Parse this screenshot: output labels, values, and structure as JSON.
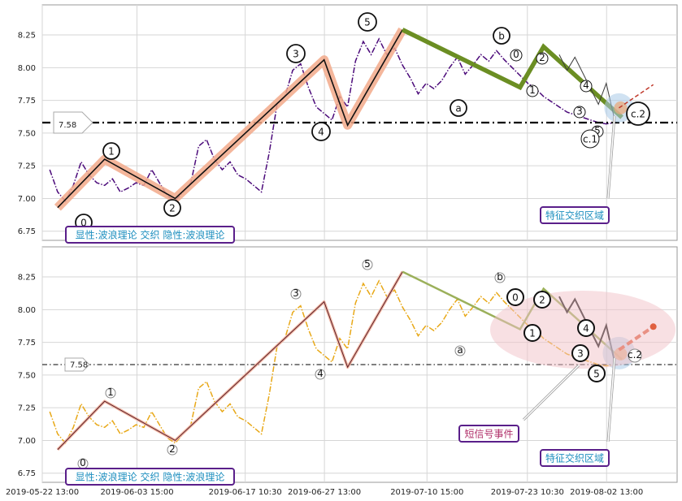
{
  "chart_data": [
    {
      "type": "line",
      "panel": "top",
      "xlim": [
        "2019-05-22 13:00",
        "2019-08-11 13:00"
      ],
      "ylim": [
        6.68,
        8.48
      ],
      "yticks": [
        6.75,
        7.0,
        7.25,
        7.5,
        7.75,
        8.0,
        8.25
      ],
      "ytick_labels": [
        "6.75",
        "7.00",
        "7.25",
        "7.50",
        "7.75",
        "8.00",
        "8.25"
      ],
      "grid": true,
      "price_marker": {
        "label": "7.58",
        "value": 7.58
      },
      "series": [
        {
          "style": "dash-dot",
          "color": "#4b0a7a",
          "x": [
            "2019-05-23",
            "2019-05-24",
            "2019-05-25",
            "2019-05-26",
            "2019-05-27",
            "2019-05-28",
            "2019-05-29",
            "2019-05-30",
            "2019-05-31",
            "2019-06-01",
            "2019-06-02",
            "2019-06-03",
            "2019-06-04",
            "2019-06-05",
            "2019-06-06",
            "2019-06-07",
            "2019-06-08",
            "2019-06-09",
            "2019-06-10",
            "2019-06-11",
            "2019-06-12",
            "2019-06-13",
            "2019-06-14",
            "2019-06-15",
            "2019-06-16",
            "2019-06-17",
            "2019-06-18",
            "2019-06-19",
            "2019-06-20",
            "2019-06-21",
            "2019-06-22",
            "2019-06-23",
            "2019-06-24",
            "2019-06-25",
            "2019-06-26",
            "2019-06-27",
            "2019-06-28",
            "2019-06-29",
            "2019-06-30",
            "2019-07-01",
            "2019-07-02",
            "2019-07-03",
            "2019-07-04",
            "2019-07-05",
            "2019-07-06",
            "2019-07-07",
            "2019-07-08",
            "2019-07-09",
            "2019-07-10",
            "2019-07-11",
            "2019-07-12",
            "2019-07-13",
            "2019-07-14",
            "2019-07-15",
            "2019-07-16",
            "2019-07-17",
            "2019-07-18",
            "2019-07-19",
            "2019-07-20",
            "2019-07-21",
            "2019-07-22",
            "2019-07-23",
            "2019-07-24",
            "2019-07-25",
            "2019-07-26",
            "2019-07-27",
            "2019-07-28",
            "2019-07-29",
            "2019-07-30",
            "2019-07-31",
            "2019-08-01",
            "2019-08-02",
            "2019-08-03"
          ],
          "y": [
            7.22,
            7.05,
            6.98,
            7.1,
            7.28,
            7.18,
            7.12,
            7.1,
            7.15,
            7.05,
            7.08,
            7.12,
            7.1,
            7.22,
            7.12,
            7.02,
            6.98,
            7.05,
            7.12,
            7.4,
            7.45,
            7.3,
            7.22,
            7.28,
            7.18,
            7.15,
            7.1,
            7.05,
            7.35,
            7.72,
            7.78,
            7.98,
            8.03,
            7.85,
            7.7,
            7.65,
            7.6,
            7.78,
            7.7,
            8.05,
            8.2,
            8.1,
            8.22,
            8.1,
            8.15,
            8.02,
            7.92,
            7.8,
            7.88,
            7.84,
            7.9,
            8.0,
            8.08,
            7.95,
            8.02,
            8.1,
            8.05,
            8.13,
            8.06,
            8.0,
            7.94,
            7.88,
            7.84,
            7.78,
            7.74,
            7.7,
            7.66,
            7.64,
            7.62,
            7.6,
            7.58,
            7.57,
            7.58
          ]
        }
      ],
      "wave_labels": [
        "0",
        "1",
        "2",
        "3",
        "4",
        "5",
        "a",
        "b",
        "c.2",
        "0",
        "1",
        "2",
        "3",
        "4",
        "5",
        "c.1"
      ],
      "text_boxes": [
        {
          "text": "显性:波浪理论 交织 隐性:波浪理论",
          "color": "#1e8fbf",
          "border": "#5a1f8a"
        },
        {
          "text": "特征交织区域",
          "color": "#1e8fbf",
          "border": "#5a1f8a"
        }
      ]
    },
    {
      "type": "line",
      "panel": "bottom",
      "xlim": [
        "2019-05-22 13:00",
        "2019-08-11 13:00"
      ],
      "ylim": [
        6.68,
        8.48
      ],
      "yticks": [
        6.75,
        7.0,
        7.25,
        7.5,
        7.75,
        8.0,
        8.25
      ],
      "ytick_labels": [
        "6.75",
        "7.00",
        "7.25",
        "7.50",
        "7.75",
        "8.00",
        "8.25"
      ],
      "xtick_labels": [
        "2019-05-22 13:00",
        "2019-06-03 15:00",
        "2019-06-17 10:30",
        "2019-06-27 13:00",
        "2019-07-10 15:00",
        "2019-07-23 10:30",
        "2019-08-02 13:00"
      ],
      "grid": true,
      "price_marker": {
        "label": "7.58",
        "value": 7.58
      },
      "series": [
        {
          "style": "dash-dot",
          "color": "#e8a817",
          "x": [
            "2019-05-23",
            "2019-05-24",
            "2019-05-25",
            "2019-05-26",
            "2019-05-27",
            "2019-05-28",
            "2019-05-29",
            "2019-05-30",
            "2019-05-31",
            "2019-06-01",
            "2019-06-02",
            "2019-06-03",
            "2019-06-04",
            "2019-06-05",
            "2019-06-06",
            "2019-06-07",
            "2019-06-08",
            "2019-06-09",
            "2019-06-10",
            "2019-06-11",
            "2019-06-12",
            "2019-06-13",
            "2019-06-14",
            "2019-06-15",
            "2019-06-16",
            "2019-06-17",
            "2019-06-18",
            "2019-06-19",
            "2019-06-20",
            "2019-06-21",
            "2019-06-22",
            "2019-06-23",
            "2019-06-24",
            "2019-06-25",
            "2019-06-26",
            "2019-06-27",
            "2019-06-28",
            "2019-06-29",
            "2019-06-30",
            "2019-07-01",
            "2019-07-02",
            "2019-07-03",
            "2019-07-04",
            "2019-07-05",
            "2019-07-06",
            "2019-07-07",
            "2019-07-08",
            "2019-07-09",
            "2019-07-10",
            "2019-07-11",
            "2019-07-12",
            "2019-07-13",
            "2019-07-14",
            "2019-07-15",
            "2019-07-16",
            "2019-07-17",
            "2019-07-18",
            "2019-07-19",
            "2019-07-20",
            "2019-07-21",
            "2019-07-22",
            "2019-07-23",
            "2019-07-24",
            "2019-07-25",
            "2019-07-26",
            "2019-07-27",
            "2019-07-28",
            "2019-07-29",
            "2019-07-30",
            "2019-07-31",
            "2019-08-01",
            "2019-08-02",
            "2019-08-03"
          ],
          "y": [
            7.22,
            7.05,
            6.98,
            7.1,
            7.28,
            7.18,
            7.12,
            7.1,
            7.15,
            7.05,
            7.08,
            7.12,
            7.1,
            7.22,
            7.12,
            7.02,
            6.98,
            7.05,
            7.12,
            7.4,
            7.45,
            7.3,
            7.22,
            7.28,
            7.18,
            7.15,
            7.1,
            7.05,
            7.35,
            7.72,
            7.78,
            7.98,
            8.03,
            7.85,
            7.7,
            7.65,
            7.6,
            7.78,
            7.7,
            8.05,
            8.2,
            8.1,
            8.22,
            8.1,
            8.15,
            8.02,
            7.92,
            7.8,
            7.88,
            7.84,
            7.9,
            8.0,
            8.08,
            7.95,
            8.02,
            8.1,
            8.05,
            8.13,
            8.06,
            8.0,
            7.94,
            7.88,
            7.84,
            7.78,
            7.74,
            7.7,
            7.66,
            7.64,
            7.62,
            7.6,
            7.58,
            7.57,
            7.58
          ]
        }
      ],
      "wave_labels": [
        "0",
        "1",
        "2",
        "3",
        "4",
        "5",
        "a",
        "b",
        "c.2",
        "0",
        "1",
        "2",
        "3",
        "4",
        "5"
      ],
      "text_boxes": [
        {
          "text": "显性:波浪理论 交织 隐性:波浪理论",
          "color": "#1e8fbf",
          "border": "#5a1f8a"
        },
        {
          "text": "短信号事件",
          "color": "#b0306a",
          "border": "#5a1f8a"
        },
        {
          "text": "特征交织区域",
          "color": "#1e8fbf",
          "border": "#5a1f8a"
        }
      ]
    }
  ]
}
